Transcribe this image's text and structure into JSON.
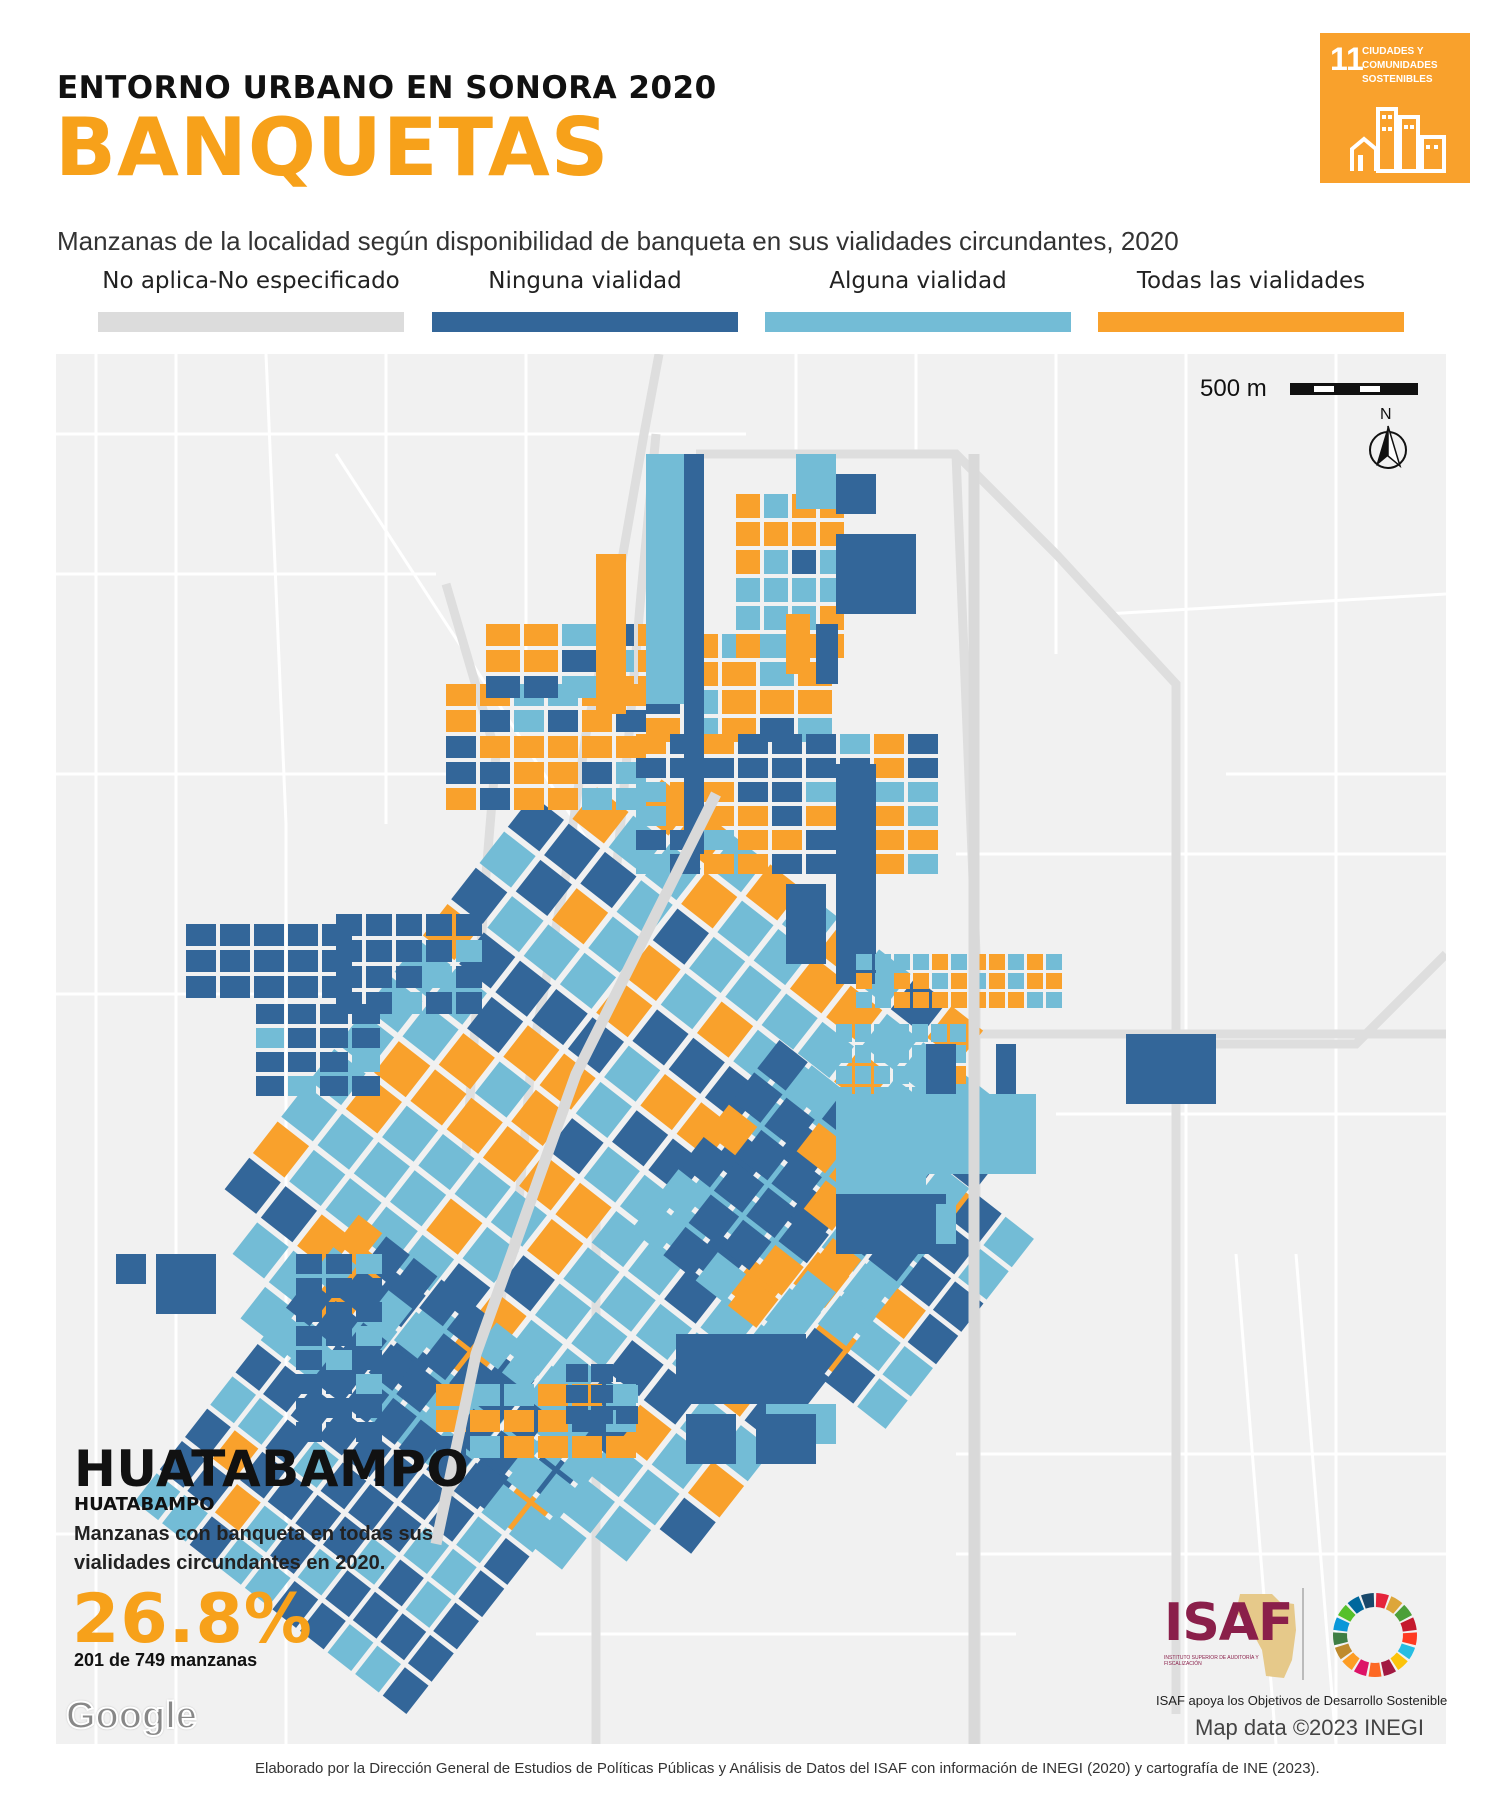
{
  "header": {
    "kicker": "ENTORNO URBANO EN SONORA 2020",
    "title": "BANQUETAS",
    "subtitle": "Manzanas de la localidad según disponibilidad de banqueta en sus vialidades circundantes, 2020"
  },
  "legend": [
    {
      "label": "No aplica-No especificado",
      "color": "#dcdcdc"
    },
    {
      "label": "Ninguna vialidad",
      "color": "#336699"
    },
    {
      "label": "Alguna vialidad",
      "color": "#73bcd6"
    },
    {
      "label": "Todas las vialidades",
      "color": "#f9a12c"
    }
  ],
  "sdg_badge": {
    "number": "11",
    "text": "CIUDADES Y COMUNIDADES SOSTENIBLES",
    "color": "#f9a12c"
  },
  "map": {
    "scale_label": "500 m",
    "north_label": "N",
    "attribution": "Map data ©2023 INEGI",
    "provider_logo": "Google"
  },
  "locality": {
    "name": "HUATABAMPO",
    "municipality": "HUATABAMPO",
    "description": "Manzanas con banqueta en todas sus vialidades circundantes en 2020.",
    "percentage": "26.8%",
    "count_text": "201 de 749 manzanas"
  },
  "branding": {
    "isaf_name": "ISAF",
    "isaf_full": "INSTITUTO SUPERIOR DE AUDITORÍA Y FISCALIZACIÓN",
    "isaf_tagline": "ISAF apoya los Objetivos de Desarrollo Sostenible",
    "isaf_color": "#8a1f4a"
  },
  "footer": {
    "credit": "Elaborado por la Dirección General de Estudios de Políticas Públicas y Análisis de Datos del ISAF con información de INEGI (2020) y cartografía de INE (2023)."
  }
}
